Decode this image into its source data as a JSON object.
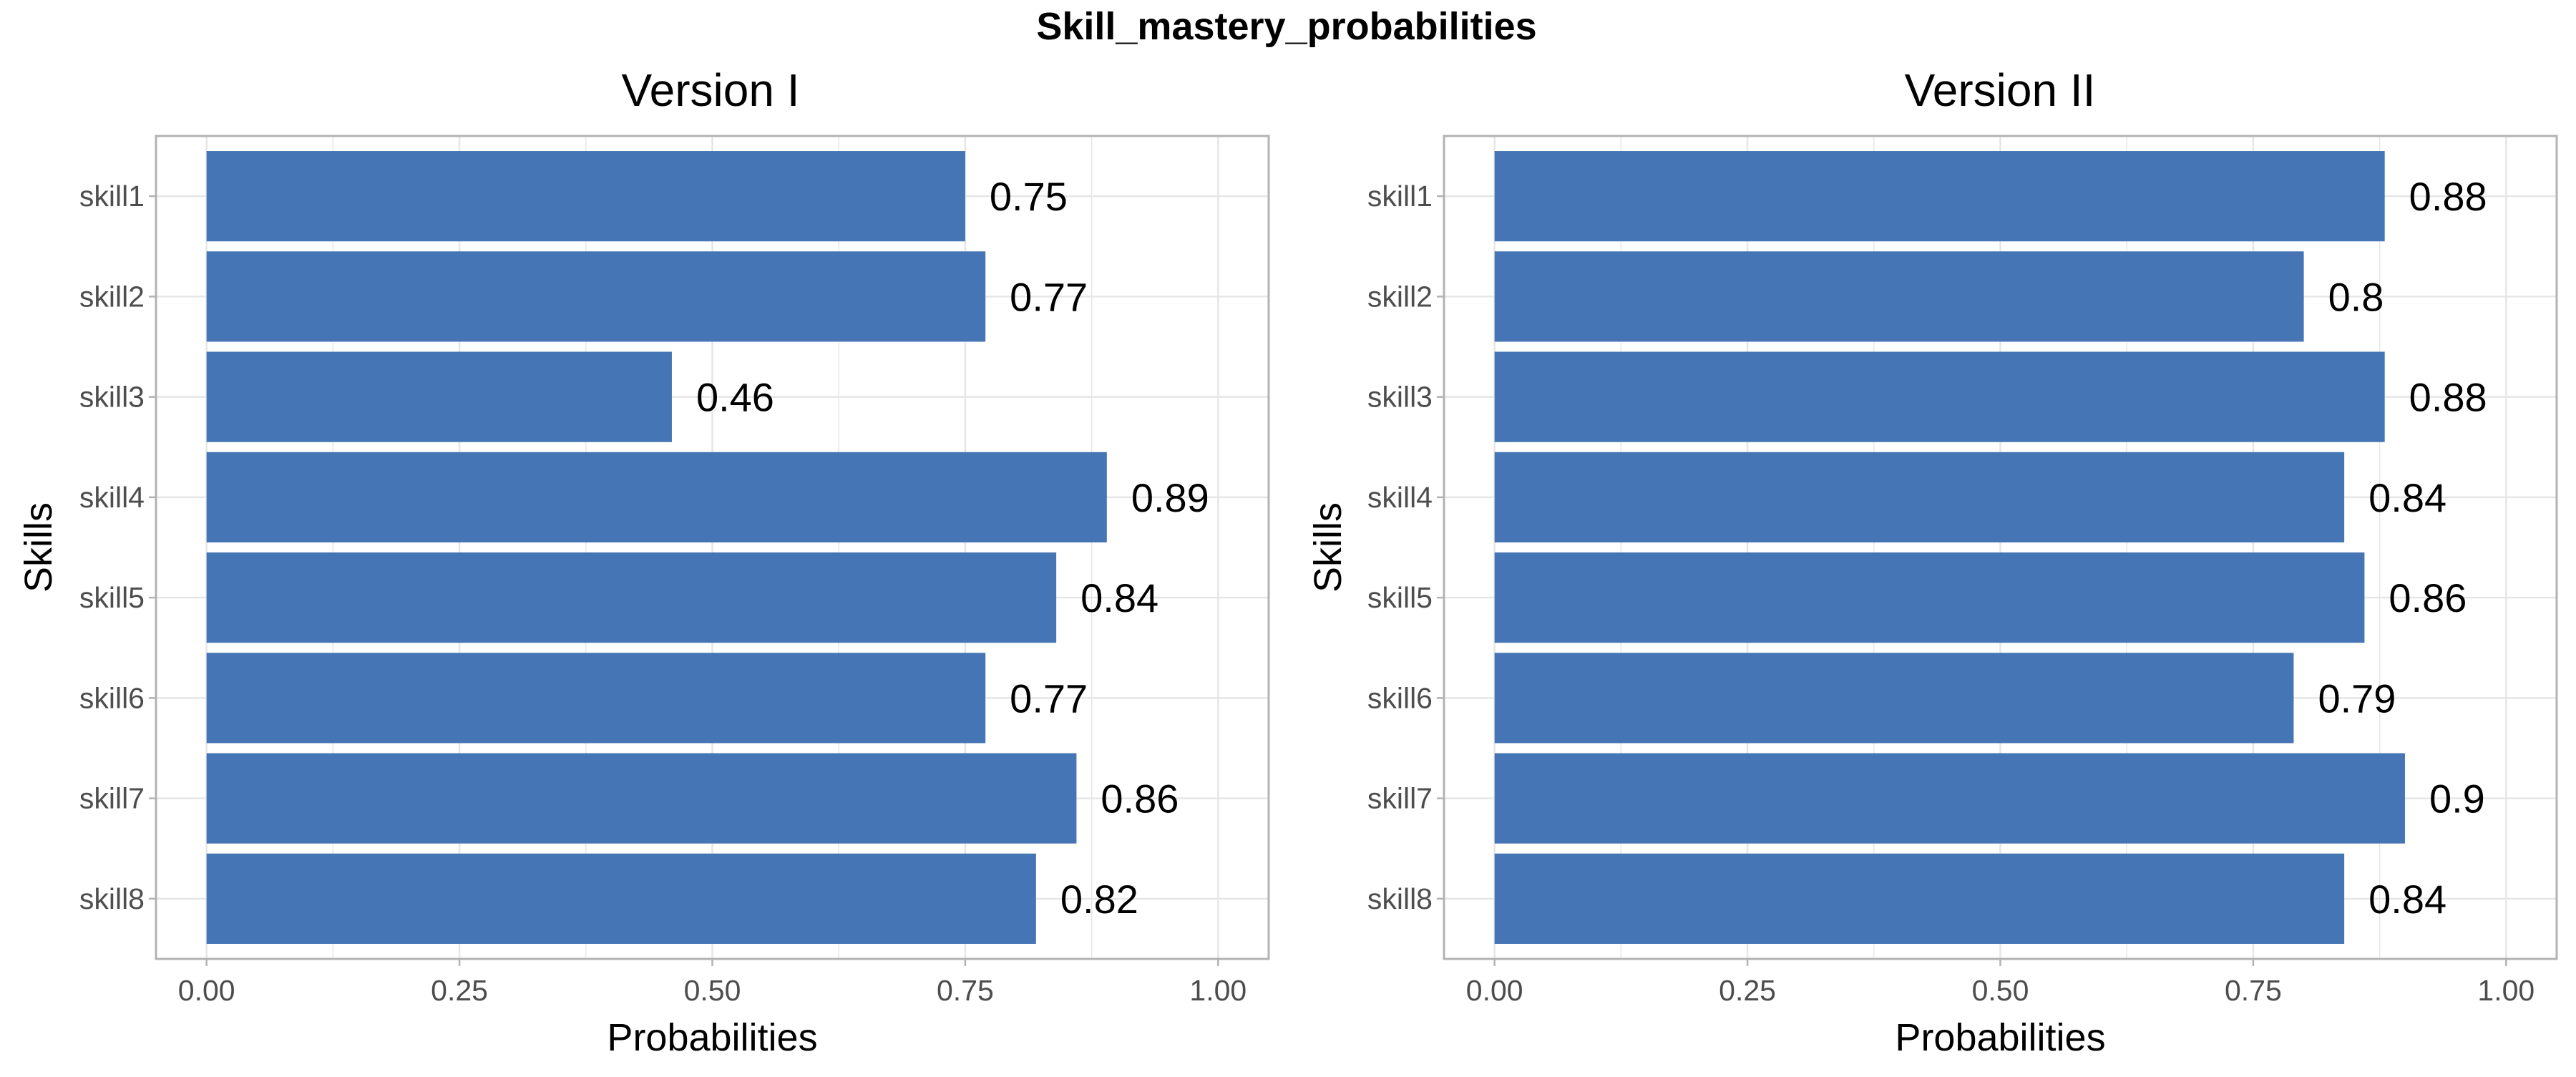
{
  "figure": {
    "title": "Skill_mastery_probabilities",
    "bar_color": "#4575b4",
    "grid_color": "#e6e6e6",
    "border_color": "#b3b3b3",
    "tick_text_color": "#4d4d4d"
  },
  "chart_data": [
    {
      "type": "bar",
      "orientation": "horizontal",
      "title": "Version I",
      "xlabel": "Probabilities",
      "ylabel": "Skills",
      "xlim": [
        0,
        1
      ],
      "xticks": [
        "0.00",
        "0.25",
        "0.50",
        "0.75",
        "1.00"
      ],
      "categories": [
        "skill1",
        "skill2",
        "skill3",
        "skill4",
        "skill5",
        "skill6",
        "skill7",
        "skill8"
      ],
      "values": [
        0.75,
        0.77,
        0.46,
        0.89,
        0.84,
        0.77,
        0.86,
        0.82
      ],
      "grid": true
    },
    {
      "type": "bar",
      "orientation": "horizontal",
      "title": "Version II",
      "xlabel": "Probabilities",
      "ylabel": "Skills",
      "xlim": [
        0,
        1
      ],
      "xticks": [
        "0.00",
        "0.25",
        "0.50",
        "0.75",
        "1.00"
      ],
      "categories": [
        "skill1",
        "skill2",
        "skill3",
        "skill4",
        "skill5",
        "skill6",
        "skill7",
        "skill8"
      ],
      "values": [
        0.88,
        0.8,
        0.88,
        0.84,
        0.86,
        0.79,
        0.9,
        0.84
      ],
      "grid": true
    }
  ]
}
